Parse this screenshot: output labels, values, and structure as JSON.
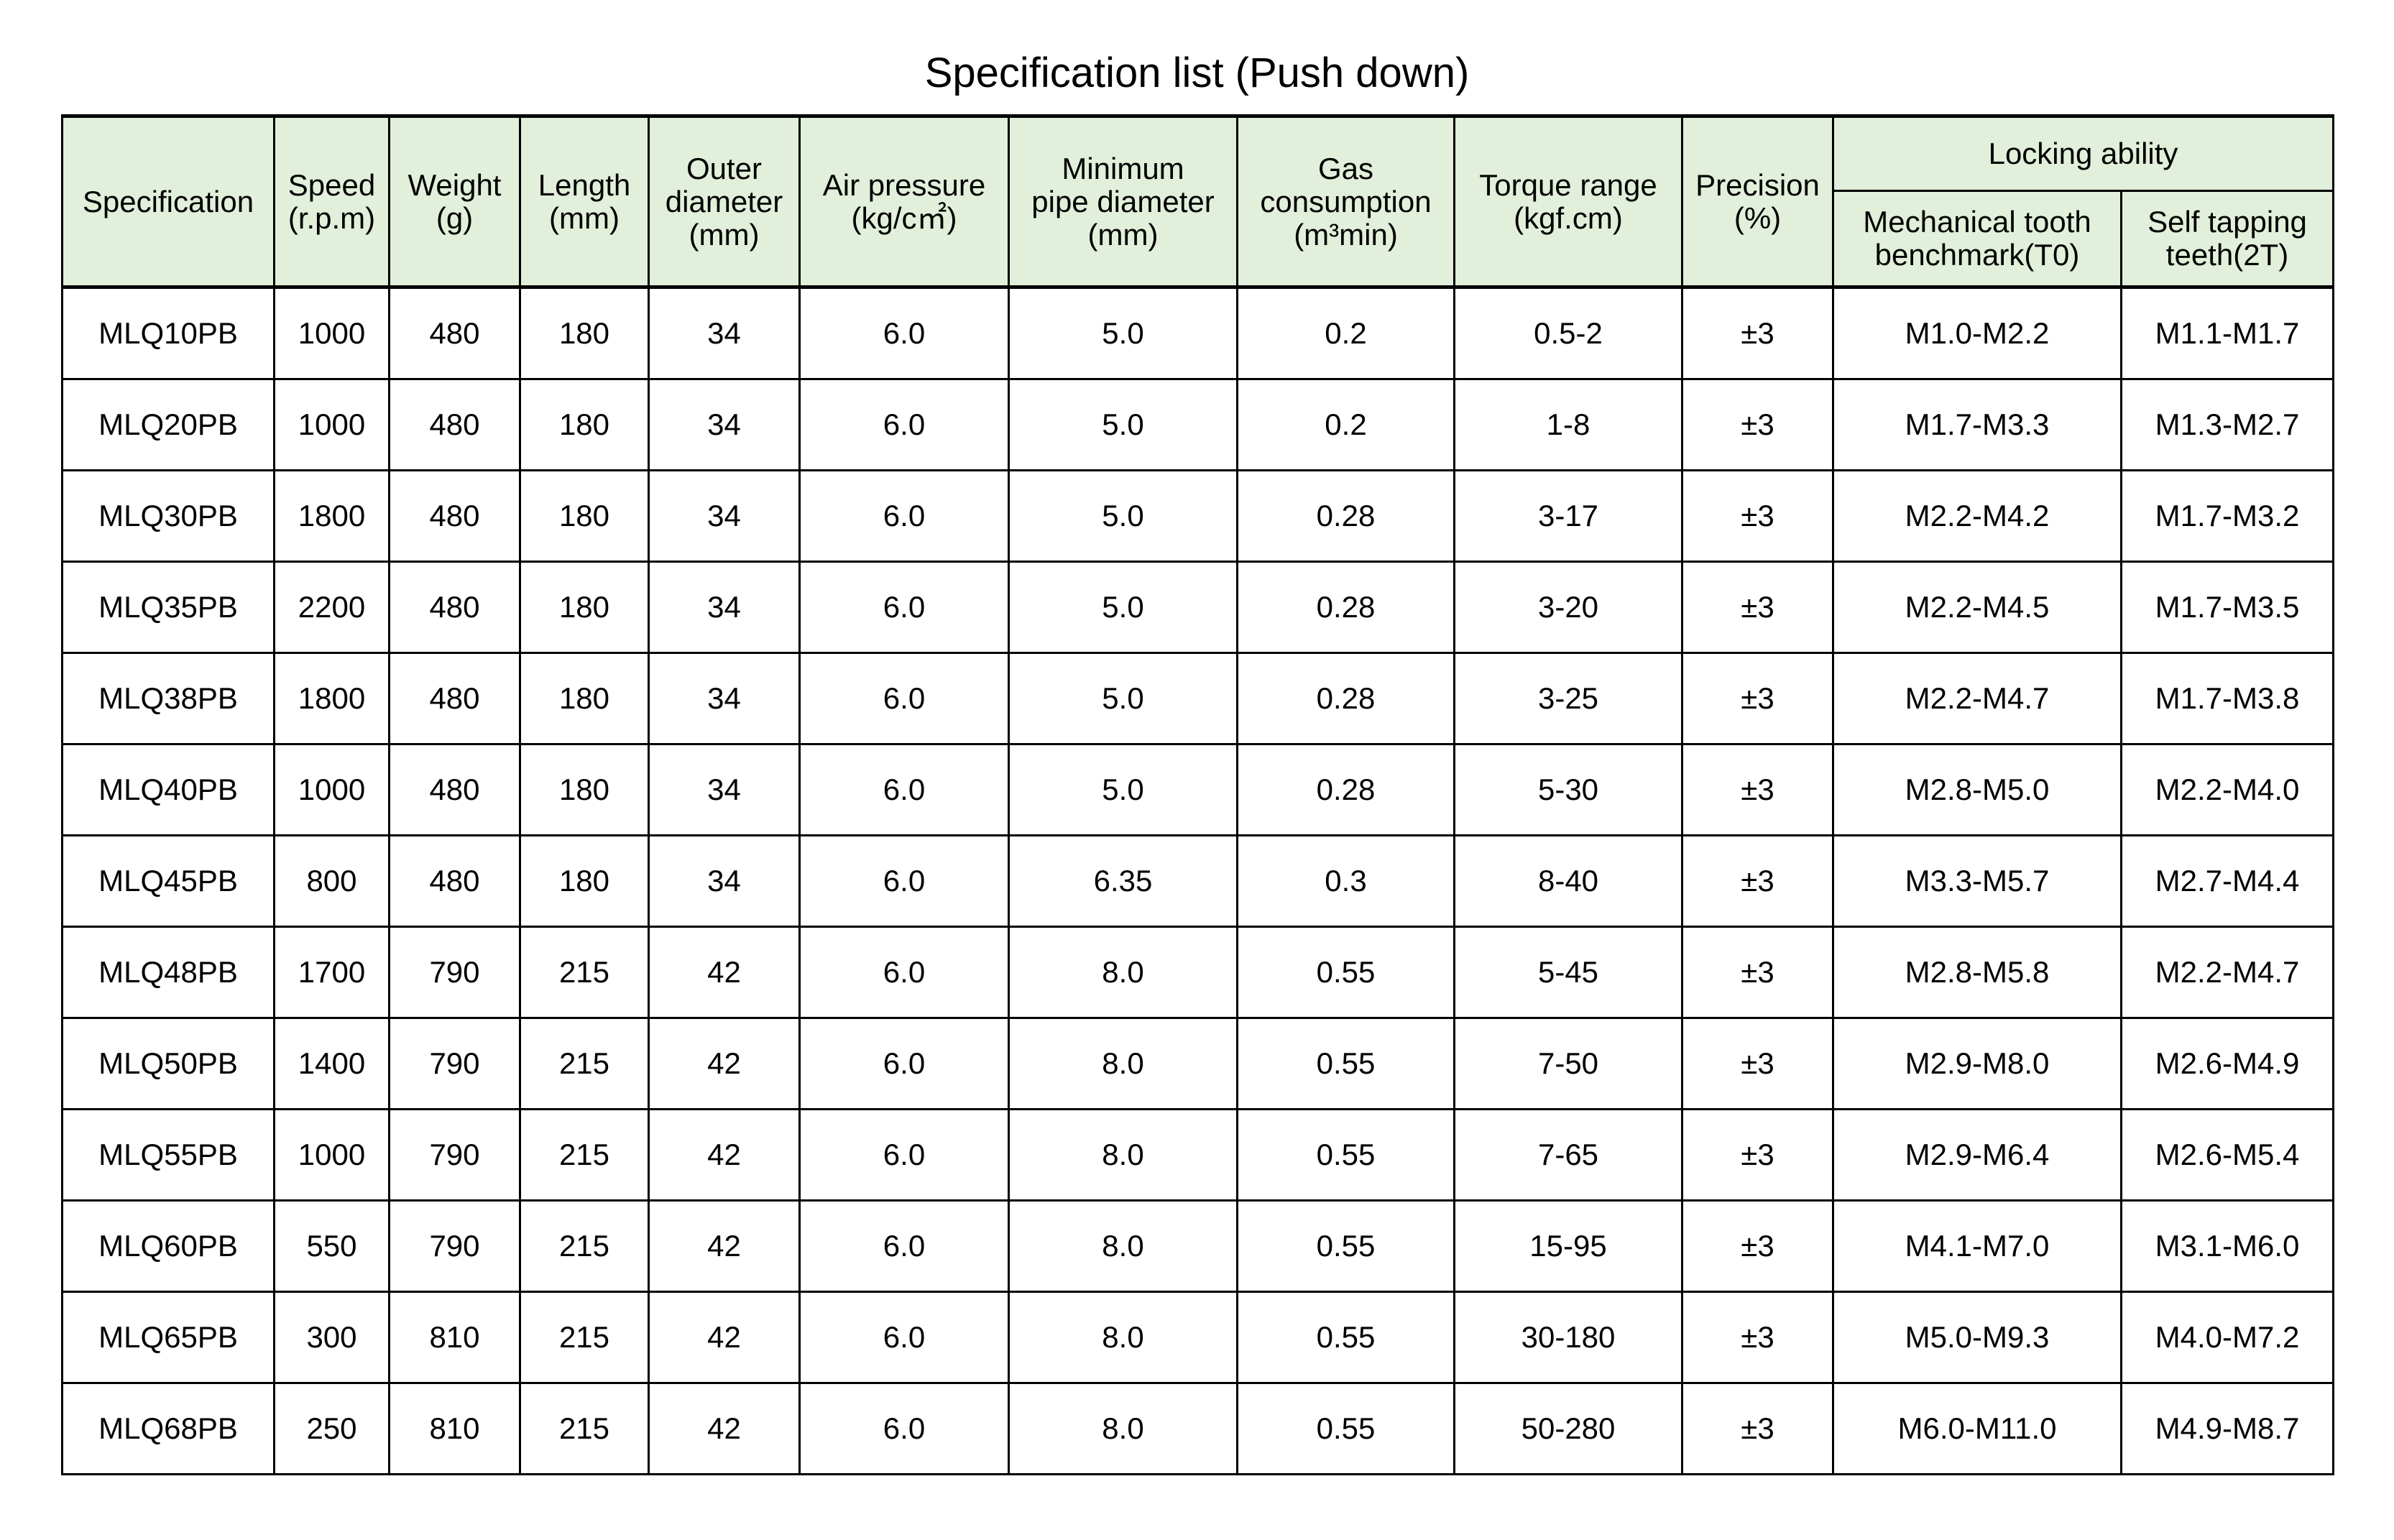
{
  "title": "Specification list (Push down)",
  "colors": {
    "header_bg": "#e2efda",
    "border": "#000000"
  },
  "headers": [
    {
      "lines": [
        "Specification"
      ]
    },
    {
      "lines": [
        "Speed",
        "(r.p.m)"
      ]
    },
    {
      "lines": [
        "Weight",
        "(g)"
      ]
    },
    {
      "lines": [
        "Length",
        "(mm)"
      ]
    },
    {
      "lines": [
        "Outer",
        "diameter",
        "(mm)"
      ]
    },
    {
      "lines": [
        "Air pressure",
        "(kg/c㎡)"
      ]
    },
    {
      "lines": [
        "Minimum",
        "pipe diameter",
        "(mm)"
      ]
    },
    {
      "lines": [
        "Gas",
        "consumption",
        "(m³min)"
      ]
    },
    {
      "lines": [
        "Torque range",
        "(kgf.cm)"
      ]
    },
    {
      "lines": [
        "Precision",
        "(%)"
      ]
    }
  ],
  "group_header": "Locking ability",
  "sub_headers": [
    {
      "lines": [
        "Mechanical tooth",
        "benchmark(T0)"
      ]
    },
    {
      "lines": [
        "Self tapping",
        "teeth(2T)"
      ]
    }
  ],
  "rows": [
    [
      "MLQ10PB",
      "1000",
      "480",
      "180",
      "34",
      "6.0",
      "5.0",
      "0.2",
      "0.5-2",
      "±3",
      "M1.0-M2.2",
      "M1.1-M1.7"
    ],
    [
      "MLQ20PB",
      "1000",
      "480",
      "180",
      "34",
      "6.0",
      "5.0",
      "0.2",
      "1-8",
      "±3",
      "M1.7-M3.3",
      "M1.3-M2.7"
    ],
    [
      "MLQ30PB",
      "1800",
      "480",
      "180",
      "34",
      "6.0",
      "5.0",
      "0.28",
      "3-17",
      "±3",
      "M2.2-M4.2",
      "M1.7-M3.2"
    ],
    [
      "MLQ35PB",
      "2200",
      "480",
      "180",
      "34",
      "6.0",
      "5.0",
      "0.28",
      "3-20",
      "±3",
      "M2.2-M4.5",
      "M1.7-M3.5"
    ],
    [
      "MLQ38PB",
      "1800",
      "480",
      "180",
      "34",
      "6.0",
      "5.0",
      "0.28",
      "3-25",
      "±3",
      "M2.2-M4.7",
      "M1.7-M3.8"
    ],
    [
      "MLQ40PB",
      "1000",
      "480",
      "180",
      "34",
      "6.0",
      "5.0",
      "0.28",
      "5-30",
      "±3",
      "M2.8-M5.0",
      "M2.2-M4.0"
    ],
    [
      "MLQ45PB",
      "800",
      "480",
      "180",
      "34",
      "6.0",
      "6.35",
      "0.3",
      "8-40",
      "±3",
      "M3.3-M5.7",
      "M2.7-M4.4"
    ],
    [
      "MLQ48PB",
      "1700",
      "790",
      "215",
      "42",
      "6.0",
      "8.0",
      "0.55",
      "5-45",
      "±3",
      "M2.8-M5.8",
      "M2.2-M4.7"
    ],
    [
      "MLQ50PB",
      "1400",
      "790",
      "215",
      "42",
      "6.0",
      "8.0",
      "0.55",
      "7-50",
      "±3",
      "M2.9-M8.0",
      "M2.6-M4.9"
    ],
    [
      "MLQ55PB",
      "1000",
      "790",
      "215",
      "42",
      "6.0",
      "8.0",
      "0.55",
      "7-65",
      "±3",
      "M2.9-M6.4",
      "M2.6-M5.4"
    ],
    [
      "MLQ60PB",
      "550",
      "790",
      "215",
      "42",
      "6.0",
      "8.0",
      "0.55",
      "15-95",
      "±3",
      "M4.1-M7.0",
      "M3.1-M6.0"
    ],
    [
      "MLQ65PB",
      "300",
      "810",
      "215",
      "42",
      "6.0",
      "8.0",
      "0.55",
      "30-180",
      "±3",
      "M5.0-M9.3",
      "M4.0-M7.2"
    ],
    [
      "MLQ68PB",
      "250",
      "810",
      "215",
      "42",
      "6.0",
      "8.0",
      "0.55",
      "50-280",
      "±3",
      "M6.0-M11.0",
      "M4.9-M8.7"
    ]
  ]
}
